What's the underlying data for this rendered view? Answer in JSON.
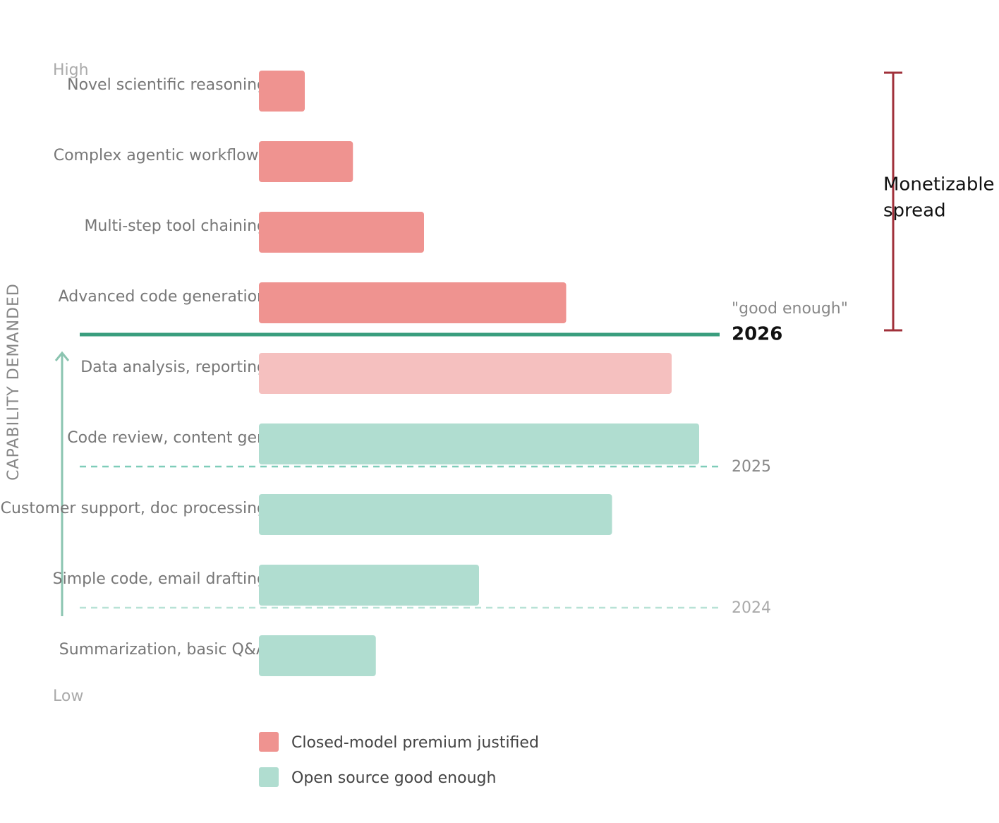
{
  "chart_data": {
    "type": "bar",
    "y_axis_label": "CAPABILITY DEMANDED",
    "y_high": "High",
    "y_low": "Low",
    "categories": [
      "Novel scientific reasoning",
      "Complex agentic workflows",
      "Multi-step tool chaining",
      "Advanced code generation",
      "Data analysis, reporting",
      "Code review, content gen",
      "Customer support, doc processing",
      "Simple code, email drafting",
      "Summarization, basic Q&A"
    ],
    "values": [
      10,
      20.5,
      36,
      67,
      90,
      96,
      77,
      48,
      25.5
    ],
    "colors": [
      "#ef9390",
      "#ef9390",
      "#ef9390",
      "#ef9390",
      "#f5c0bf",
      "#b0ddd0",
      "#b0ddd0",
      "#b0ddd0",
      "#b0ddd0"
    ],
    "xlim": [
      0,
      100
    ],
    "thresholds": [
      {
        "label": "2026",
        "note": "\"good enough\"",
        "style": "solid",
        "color": "#3a9e7e"
      },
      {
        "label": "2025",
        "style": "dashed",
        "color": "#7fcdb9"
      },
      {
        "label": "2024",
        "style": "dashed",
        "color": "#b8e2d6"
      }
    ],
    "bracket_label": [
      "Monetizable",
      "spread"
    ],
    "bracket_color": "#a0303a",
    "legend": [
      {
        "name": "Closed-model premium justified",
        "color": "#ef9390"
      },
      {
        "name": "Open source good enough",
        "color": "#b0ddd0"
      }
    ]
  }
}
